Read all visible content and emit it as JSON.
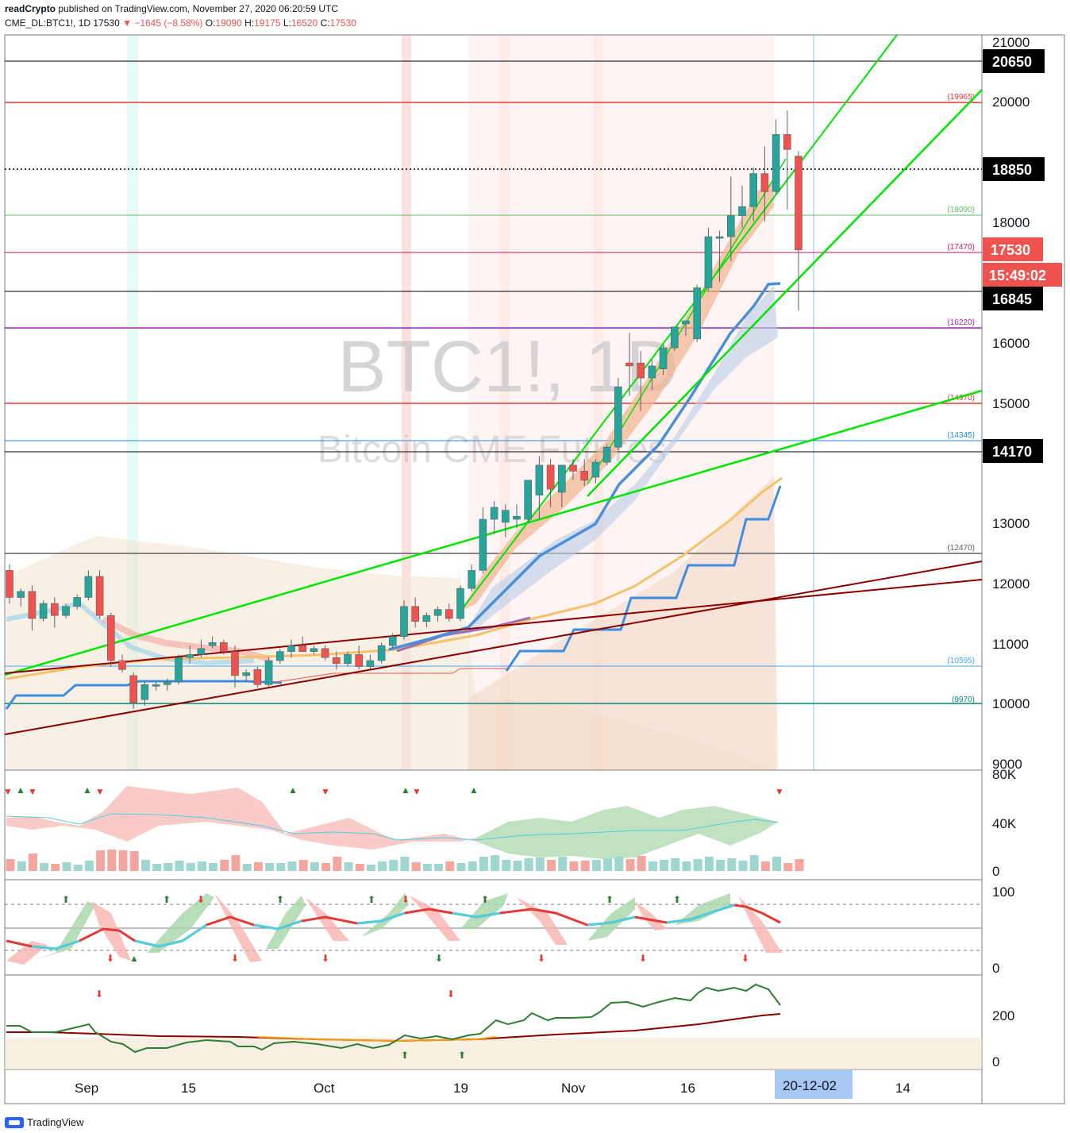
{
  "header": {
    "publisher": "readCrypto",
    "published_text": "published on TradingView.com, November 27, 2020 06:20:59 UTC",
    "symbol": "CME_DL:BTC1!, 1D",
    "last": "17530",
    "change": "−1645 (−8.58%)",
    "o_label": "O:",
    "o": "19090",
    "h_label": "H:",
    "h": "19175",
    "l_label": "L:",
    "l": "16520",
    "c_label": "C:",
    "c": "17530"
  },
  "watermark": {
    "ticker": "BTC1!, 1D",
    "name": "Bitcoin CME Futures"
  },
  "price_axis": {
    "ticks": [
      "21000",
      "20000",
      "18000",
      "16000",
      "15000",
      "13000",
      "12000",
      "11000",
      "10000",
      "9000"
    ],
    "tag_20650": "20650",
    "tag_18850": "18850",
    "tag_17530": "17530",
    "tag_countdown": "15:49:02",
    "tag_16845": "16845",
    "tag_14170": "14170"
  },
  "level_labels": [
    "(19965)",
    "(18090)",
    "(17470)",
    "(16220)",
    "(14970)",
    "(14345)",
    "(12470)",
    "(10595)",
    "(9970)"
  ],
  "volume_axis": {
    "ticks": [
      "80K",
      "40K",
      "0"
    ]
  },
  "stoch_axis": {
    "ticks": [
      "100",
      "0"
    ]
  },
  "osc_axis": {
    "ticks": [
      "200",
      "0"
    ]
  },
  "time_axis": {
    "ticks": [
      "Sep",
      "15",
      "Oct",
      "19",
      "Nov",
      "16",
      "14"
    ],
    "cursor_date": "20-12-02"
  },
  "footer": {
    "brand": "TradingView"
  },
  "colors": {
    "up": "#26a69a",
    "down": "#ef5350",
    "green_line": "#00e600",
    "dark_red": "#8b0000",
    "ma_blue": "#4a90d9",
    "ma_orange": "#f5c26b",
    "step_blue": "#3d8ee0"
  },
  "chart_data": {
    "type": "candlestick",
    "title": "BTC1!, 1D",
    "subtitle": "Bitcoin CME Futures",
    "ylim": [
      9000,
      21000
    ],
    "x_ticks": [
      "Sep",
      "15",
      "Oct",
      "19",
      "Nov",
      "16",
      "14"
    ],
    "horizontal_levels": [
      20650,
      19965,
      18850,
      18090,
      17470,
      16845,
      16220,
      14970,
      14345,
      14170,
      12470,
      10595,
      9970
    ],
    "candles": [
      [
        12200,
        12300,
        11650,
        11750
      ],
      [
        11750,
        11900,
        11600,
        11850
      ],
      [
        11850,
        11950,
        11200,
        11400
      ],
      [
        11400,
        11700,
        11350,
        11650
      ],
      [
        11650,
        11750,
        11250,
        11450
      ],
      [
        11450,
        11650,
        11400,
        11600
      ],
      [
        11600,
        11800,
        11550,
        11750
      ],
      [
        11750,
        12200,
        11700,
        12100
      ],
      [
        12100,
        12200,
        11400,
        11450
      ],
      [
        11450,
        11500,
        10600,
        10700
      ],
      [
        10700,
        10800,
        10500,
        10550
      ],
      [
        10450,
        10500,
        9900,
        10000
      ],
      [
        10050,
        10350,
        9950,
        10300
      ],
      [
        10300,
        10350,
        10200,
        10300
      ],
      [
        10300,
        10400,
        10200,
        10350
      ],
      [
        10350,
        10800,
        10300,
        10750
      ],
      [
        10750,
        10950,
        10650,
        10800
      ],
      [
        10800,
        11050,
        10750,
        10900
      ],
      [
        10950,
        11100,
        10900,
        11000
      ],
      [
        11000,
        11050,
        10800,
        10850
      ],
      [
        10850,
        10950,
        10250,
        10450
      ],
      [
        10450,
        10550,
        10350,
        10500
      ],
      [
        10550,
        10600,
        10250,
        10300
      ],
      [
        10300,
        10750,
        10250,
        10700
      ],
      [
        10700,
        10900,
        10650,
        10850
      ],
      [
        10850,
        11050,
        10750,
        10950
      ],
      [
        10950,
        11100,
        10850,
        10850
      ],
      [
        10850,
        10950,
        10800,
        10900
      ],
      [
        10900,
        10950,
        10700,
        10750
      ],
      [
        10750,
        10850,
        10550,
        10650
      ],
      [
        10650,
        10850,
        10600,
        10800
      ],
      [
        10800,
        10950,
        10550,
        10600
      ],
      [
        10600,
        10800,
        10550,
        10700
      ],
      [
        10700,
        11000,
        10650,
        10950
      ],
      [
        10950,
        11150,
        10900,
        11100
      ],
      [
        11100,
        11700,
        11050,
        11600
      ],
      [
        11600,
        11750,
        11250,
        11350
      ],
      [
        11350,
        11500,
        11250,
        11450
      ],
      [
        11450,
        11600,
        11350,
        11550
      ],
      [
        11550,
        11650,
        11350,
        11400
      ],
      [
        11400,
        11950,
        11350,
        11900
      ],
      [
        11900,
        12300,
        11850,
        12200
      ],
      [
        12200,
        13250,
        12150,
        13050
      ],
      [
        13050,
        13350,
        12800,
        13250
      ],
      [
        13000,
        13300,
        12750,
        13200
      ],
      [
        13050,
        13300,
        12900,
        13100
      ],
      [
        13050,
        13700,
        13000,
        13700
      ],
      [
        13450,
        14100,
        13050,
        13950
      ],
      [
        13950,
        14050,
        13250,
        13550
      ],
      [
        13500,
        13950,
        13250,
        13950
      ],
      [
        13950,
        14050,
        13700,
        13850
      ],
      [
        13850,
        14050,
        13600,
        13700
      ],
      [
        13750,
        14050,
        13650,
        14000
      ],
      [
        14000,
        14300,
        13950,
        14250
      ],
      [
        14250,
        15400,
        14200,
        15250
      ],
      [
        15650,
        16150,
        15100,
        15600
      ],
      [
        15650,
        15850,
        14850,
        15400
      ],
      [
        15400,
        15700,
        15200,
        15600
      ],
      [
        15550,
        15950,
        15450,
        15900
      ],
      [
        15900,
        16250,
        15850,
        16250
      ],
      [
        16300,
        16350,
        16100,
        16350
      ],
      [
        16050,
        16950,
        16000,
        16900
      ],
      [
        16900,
        17900,
        16850,
        17750
      ],
      [
        17750,
        17850,
        17000,
        17750
      ],
      [
        17750,
        18750,
        17350,
        18100
      ],
      [
        18100,
        18600,
        17900,
        18250
      ],
      [
        18250,
        18900,
        18000,
        18800
      ],
      [
        18800,
        19250,
        18000,
        18500
      ],
      [
        18500,
        19700,
        18450,
        19450
      ],
      [
        19450,
        19850,
        18200,
        19200
      ],
      [
        19090,
        19175,
        16520,
        17530
      ]
    ],
    "volume_ylim": [
      0,
      80000
    ],
    "stoch_ylim": [
      0,
      100
    ],
    "osc_ylim": [
      0,
      300
    ]
  }
}
